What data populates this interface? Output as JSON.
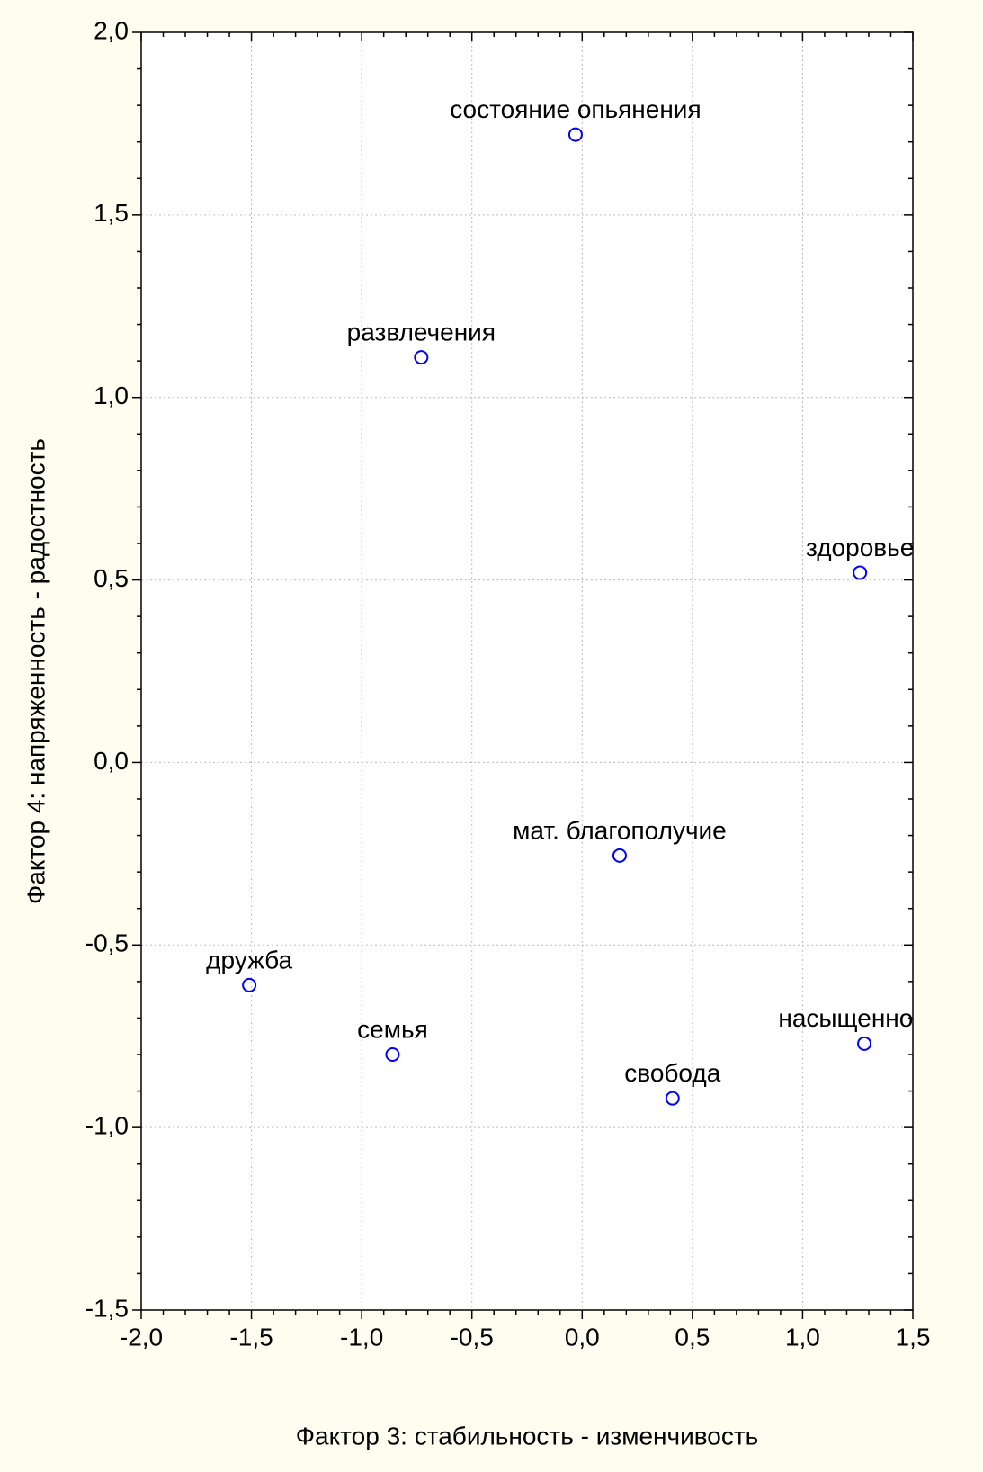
{
  "chart_data": {
    "type": "scatter",
    "xlabel": "Фактор 3: стабильность - изменчивость",
    "ylabel": "Фактор 4: напряженность - радостность",
    "point_labels": [
      "состояние опьянения",
      "развлечения",
      "здоровье",
      "мат. благополучие",
      "дружба",
      "семья",
      "насыщенность",
      "свобода"
    ],
    "x": [
      -0.03,
      -0.73,
      1.26,
      0.17,
      -1.51,
      -0.86,
      1.28,
      0.41
    ],
    "values": [
      1.72,
      1.11,
      0.52,
      -0.255,
      -0.61,
      -0.8,
      -0.77,
      -0.92
    ],
    "color": "#0000ff",
    "xlim": [
      -2.0,
      1.5
    ],
    "ylim": [
      -1.5,
      2.0
    ],
    "xticks": [
      {
        "value": -2.0,
        "label": "-2,0"
      },
      {
        "value": -1.5,
        "label": "-1,5"
      },
      {
        "value": -1.0,
        "label": "-1,0"
      },
      {
        "value": -0.5,
        "label": "-0,5"
      },
      {
        "value": 0.0,
        "label": "0,0"
      },
      {
        "value": 0.5,
        "label": "0,5"
      },
      {
        "value": 1.0,
        "label": "1,0"
      },
      {
        "value": 1.5,
        "label": "1,5"
      }
    ],
    "yticks": [
      {
        "value": -1.5,
        "label": "-1,5"
      },
      {
        "value": -1.0,
        "label": "-1,0"
      },
      {
        "value": -0.5,
        "label": "-0,5"
      },
      {
        "value": 0.0,
        "label": "0,0"
      },
      {
        "value": 0.5,
        "label": "0,5"
      },
      {
        "value": 1.0,
        "label": "1,0"
      },
      {
        "value": 1.5,
        "label": "1,5"
      },
      {
        "value": 2.0,
        "label": "2,0"
      }
    ],
    "grid": true
  }
}
